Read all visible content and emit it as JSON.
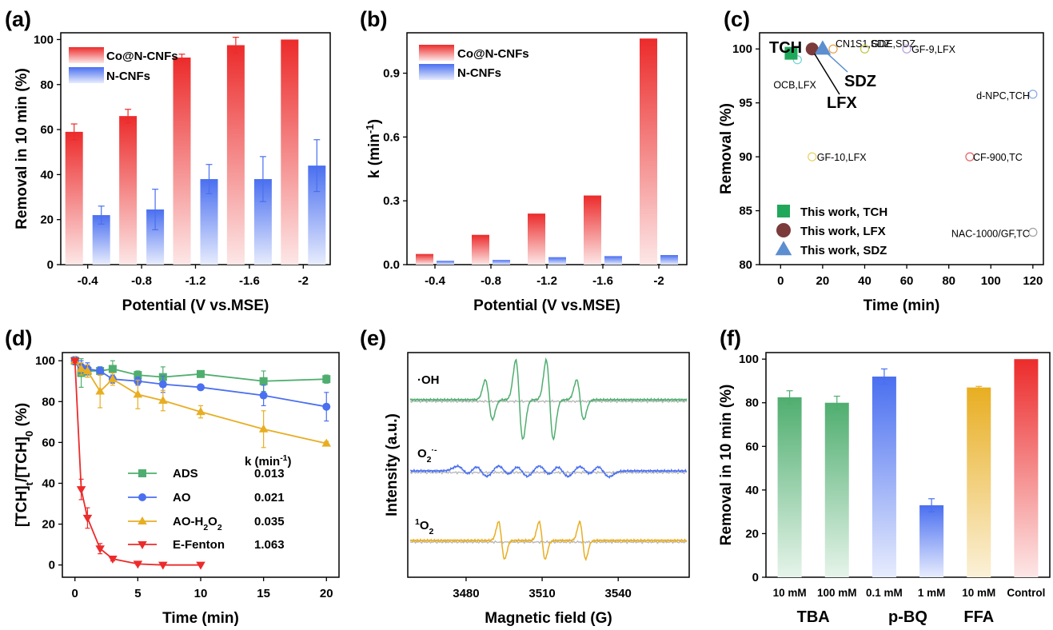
{
  "figure": {
    "colors": {
      "red": "#ec2b2b",
      "blue": "#4a6ff0",
      "green": "#4fae6f",
      "gold": "#e8ae22",
      "gray": "#b8b8b8"
    }
  },
  "chart_data": [
    {
      "panel": "(a)",
      "type": "bar",
      "xlabel": "Potential (V vs.MSE)",
      "ylabel": "Removal in 10 min (%)",
      "ylim": [
        0,
        103
      ],
      "yticks": [
        "0",
        "20",
        "40",
        "60",
        "80",
        "100"
      ],
      "categories": [
        "-0.4",
        "-0.8",
        "-1.2",
        "-1.6",
        "-2"
      ],
      "series": [
        {
          "name": "Co@N-CNFs",
          "values": [
            59,
            66,
            92,
            97.5,
            100
          ],
          "errors": [
            3.5,
            3,
            1.5,
            3.5,
            0
          ]
        },
        {
          "name": "N-CNFs",
          "values": [
            22,
            24.5,
            38,
            38,
            44
          ],
          "errors": [
            4,
            9,
            6.5,
            10,
            11.5
          ]
        }
      ]
    },
    {
      "panel": "(b)",
      "type": "bar",
      "xlabel": "Potential (V vs.MSE)",
      "ylabel_main": "k (min",
      "ylabel_sup": "-1",
      "ylabel_tail": ")",
      "ylim": [
        0,
        1.09
      ],
      "yticks": [
        "0.0",
        "0.3",
        "0.6",
        "0.9"
      ],
      "categories": [
        "-0.4",
        "-0.8",
        "-1.2",
        "-1.6",
        "-2"
      ],
      "series": [
        {
          "name": "Co@N-CNFs",
          "values": [
            0.05,
            0.14,
            0.24,
            0.325,
            1.063
          ]
        },
        {
          "name": "N-CNFs",
          "values": [
            0.018,
            0.022,
            0.035,
            0.04,
            0.045
          ]
        }
      ]
    },
    {
      "panel": "(c)",
      "type": "scatter",
      "xlabel": "Time (min)",
      "ylabel": "Removal (%)",
      "xlim": [
        -10,
        125
      ],
      "ylim": [
        80,
        101.5
      ],
      "xticks": [
        "0",
        "20",
        "40",
        "60",
        "80",
        "100",
        "120"
      ],
      "yticks": [
        "80",
        "85",
        "90",
        "95",
        "100"
      ],
      "this_work": [
        {
          "name": "This work, TCH",
          "label": "TCH",
          "x": 5,
          "y": 99.6,
          "marker": "square",
          "color": "#1fa85a"
        },
        {
          "name": "This work, LFX",
          "label": "LFX",
          "x": 15,
          "y": 100,
          "marker": "circle",
          "color": "#7b3b3b"
        },
        {
          "name": "This work, SDZ",
          "label": "SDZ",
          "x": 20,
          "y": 100,
          "marker": "triangle",
          "color": "#5c8ed0"
        }
      ],
      "literature": [
        {
          "label": "OCB,LFX",
          "x": 8,
          "y": 99,
          "color": "#6fd3d3"
        },
        {
          "label": "CN1S1,SDZ",
          "x": 25,
          "y": 100,
          "color": "#e8a24a"
        },
        {
          "label": "GDE,SDZ",
          "x": 40,
          "y": 100,
          "color": "#c2c24a"
        },
        {
          "label": "GF-9,LFX",
          "x": 60,
          "y": 100,
          "color": "#b89de0"
        },
        {
          "label": "d-NPC,TCH",
          "x": 120,
          "y": 95.8,
          "color": "#8aa9e0"
        },
        {
          "label": "GF-10,LFX",
          "x": 15,
          "y": 90,
          "color": "#e8d060"
        },
        {
          "label": "CF-900,TC",
          "x": 90,
          "y": 90,
          "color": "#e66060"
        },
        {
          "label": "NAC-1000/GF,TC",
          "x": 120,
          "y": 83,
          "color": "#a0a0a0"
        }
      ]
    },
    {
      "panel": "(d)",
      "type": "line",
      "xlabel": "Time (min)",
      "ylabel": "[TCH]t/[TCH]0 (%)",
      "xlim": [
        -1,
        21
      ],
      "ylim": [
        -6,
        104
      ],
      "xticks": [
        0,
        5,
        10,
        15,
        20
      ],
      "yticks": [
        0,
        20,
        40,
        60,
        80,
        100
      ],
      "k_header": "k (min",
      "k_header_sup": "-1",
      "k_header_tail": ")",
      "series": [
        {
          "name": "ADS",
          "k": "0.013",
          "marker": "square",
          "x": [
            0,
            0.5,
            1,
            2,
            3,
            5,
            7,
            10,
            15,
            20
          ],
          "y": [
            100,
            94,
            95,
            95,
            96,
            93,
            92,
            93.5,
            90,
            91
          ],
          "err": [
            2,
            7,
            3,
            2,
            4,
            2,
            5,
            1,
            5,
            2
          ]
        },
        {
          "name": "AO",
          "k": "0.021",
          "marker": "circle",
          "x": [
            0,
            0.5,
            1,
            2,
            3,
            5,
            7,
            10,
            15,
            20
          ],
          "y": [
            100,
            97,
            96,
            95,
            91,
            90,
            88.5,
            87,
            83,
            77.5
          ],
          "err": [
            2,
            3,
            3,
            2,
            2,
            2,
            4,
            1,
            5,
            7
          ]
        },
        {
          "name": "AO-H2O2",
          "name_base": "AO-H",
          "name_sub1": "2",
          "name_mid": "O",
          "name_sub2": "2",
          "k": "0.035",
          "marker": "triangle",
          "x": [
            0,
            0.5,
            1,
            2,
            3,
            5,
            7,
            10,
            15,
            20
          ],
          "y": [
            100,
            96,
            95,
            85,
            91,
            83.5,
            80.5,
            75,
            66.5,
            59.5
          ],
          "err": [
            1,
            3,
            3,
            8,
            3,
            7,
            5,
            3,
            9,
            1
          ]
        },
        {
          "name": "E-Fenton",
          "k": "1.063",
          "marker": "triangle-down",
          "x": [
            0,
            0.5,
            1,
            2,
            3,
            5,
            7,
            10
          ],
          "y": [
            100,
            37,
            23,
            8,
            3,
            0.5,
            0,
            0
          ],
          "err": [
            1,
            5,
            5,
            2.5,
            1,
            0.5,
            0,
            0
          ]
        }
      ]
    },
    {
      "panel": "(e)",
      "type": "line",
      "xlabel": "Magnetic field (G)",
      "ylabel": "Intensity (a.u.)",
      "xlim": [
        3457,
        3568
      ],
      "xticks": [
        3480,
        3510,
        3540
      ],
      "spectra": [
        {
          "label": "·OH",
          "label_text": "·OH",
          "color": "#4fae6f",
          "peaks": [
            3489,
            3501,
            3513,
            3525
          ],
          "amps": [
            1,
            2,
            2,
            1
          ]
        },
        {
          "label": "O2·-",
          "label_base": "O",
          "label_sub": "2",
          "label_sup": "·-",
          "color": "#4a6ff0",
          "peaks": [
            3479,
            3486,
            3495,
            3502,
            3511,
            3518,
            3527,
            3534
          ],
          "amps": [
            0.8,
            1,
            0.9,
            1,
            0.9,
            1,
            0.8,
            1
          ]
        },
        {
          "label": "1O2",
          "label_sup": "1",
          "label_base": "O",
          "label_sub": "2",
          "color": "#e8ae22",
          "peaks": [
            3494,
            3510,
            3526
          ],
          "amps": [
            1,
            1,
            1
          ]
        }
      ]
    },
    {
      "panel": "(f)",
      "type": "bar",
      "ylabel": "Removal in 10 min (%)",
      "ylim": [
        0,
        103
      ],
      "yticks": [
        "0",
        "20",
        "40",
        "60",
        "80",
        "100"
      ],
      "categories": [
        "10 mM",
        "100 mM",
        "0.1 mM",
        "1 mM",
        "10 mM",
        "Control"
      ],
      "values": [
        82.5,
        80,
        92,
        33,
        87,
        100
      ],
      "errors": [
        3,
        3,
        3.5,
        3,
        0.5,
        0
      ],
      "bar_colors": [
        "green",
        "green",
        "blue",
        "blue",
        "gold",
        "red"
      ],
      "groups": [
        "TBA",
        "p-BQ",
        "FFA"
      ]
    }
  ]
}
